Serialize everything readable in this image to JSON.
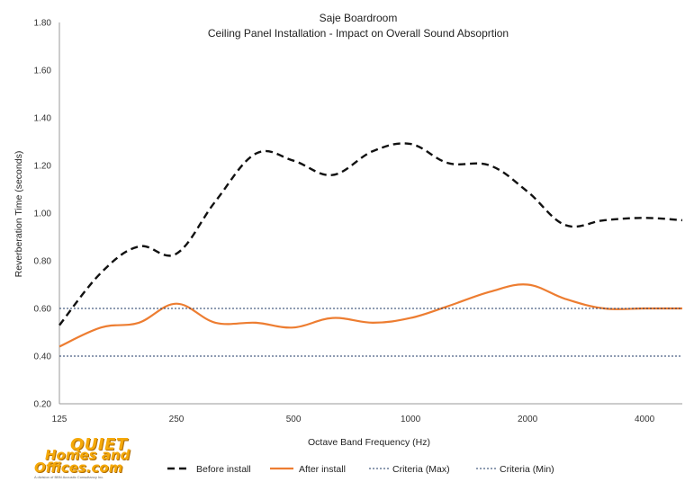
{
  "chart_data": {
    "type": "line",
    "title": "Saje Boardroom",
    "subtitle": "Ceiling Panel Installation - Impact on Overall Sound Absoprtion",
    "xlabel": "Octave Band Frequency (Hz)",
    "ylabel": "Reverberation Time (seconds)",
    "ylim": [
      0.2,
      1.8
    ],
    "yticks": [
      "0.20",
      "0.40",
      "0.60",
      "0.80",
      "1.00",
      "1.20",
      "1.40",
      "1.60",
      "1.80"
    ],
    "xticks": [
      "125",
      "250",
      "500",
      "1000",
      "2000",
      "4000"
    ],
    "x_scale": "log2",
    "x_range": [
      125,
      5000
    ],
    "grid": false,
    "legend_position": "bottom",
    "series": [
      {
        "name": "Before install",
        "style": "dashed",
        "color": "#111111",
        "x": [
          125,
          160,
          200,
          250,
          315,
          400,
          500,
          630,
          800,
          1000,
          1250,
          1600,
          2000,
          2500,
          3150,
          4000,
          5000
        ],
        "y": [
          0.53,
          0.75,
          0.86,
          0.83,
          1.05,
          1.25,
          1.22,
          1.16,
          1.26,
          1.29,
          1.21,
          1.2,
          1.09,
          0.95,
          0.97,
          0.98,
          0.97
        ]
      },
      {
        "name": "After install",
        "style": "solid",
        "color": "#ed7d31",
        "x": [
          125,
          160,
          200,
          250,
          315,
          400,
          500,
          630,
          800,
          1000,
          1250,
          1600,
          2000,
          2500,
          3150,
          4000,
          5000
        ],
        "y": [
          0.44,
          0.52,
          0.54,
          0.62,
          0.54,
          0.54,
          0.52,
          0.56,
          0.54,
          0.56,
          0.61,
          0.67,
          0.7,
          0.64,
          0.6,
          0.6,
          0.6
        ]
      },
      {
        "name": "Criteria (Max)",
        "style": "dotted",
        "color": "#1f3864",
        "x": [
          125,
          5000
        ],
        "y": [
          0.6,
          0.6
        ]
      },
      {
        "name": "Criteria (Min)",
        "style": "dotted",
        "color": "#1f3864",
        "x": [
          125,
          5000
        ],
        "y": [
          0.4,
          0.4
        ]
      }
    ]
  },
  "logo": {
    "line1": "QUIET",
    "line2": "Homes and",
    "line3": "Offices.com",
    "tagline": "A division of BBN Acoustic Consultancy Inc."
  }
}
